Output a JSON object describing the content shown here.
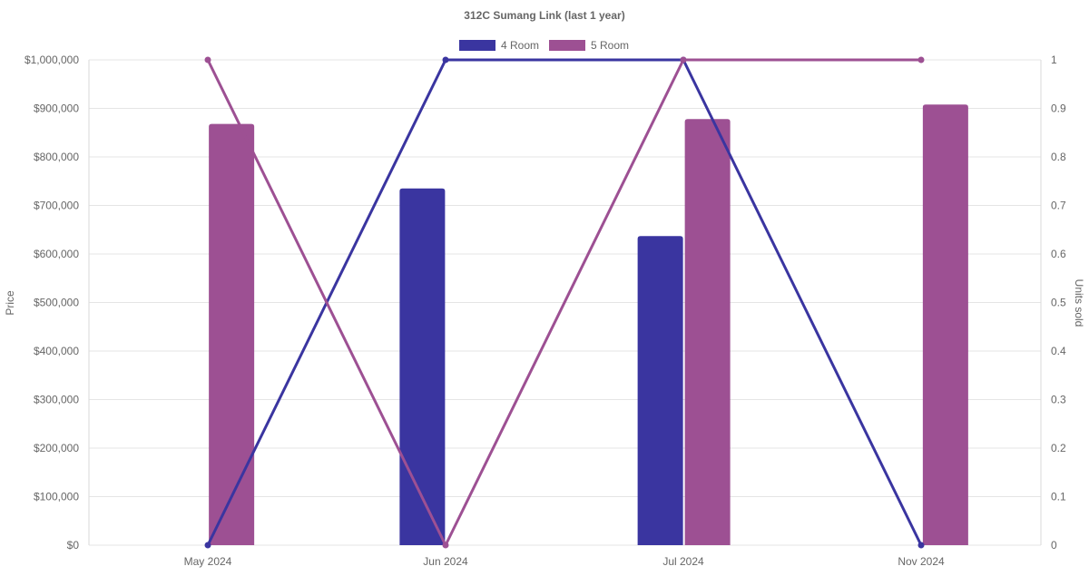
{
  "chart_data": {
    "type": "bar",
    "title": "312C Sumang Link (last 1 year)",
    "categories": [
      "May 2024",
      "Jun 2024",
      "Jul 2024",
      "Nov 2024"
    ],
    "y_left": {
      "label": "Price",
      "range": [
        0,
        1000000
      ],
      "ticks": [
        "$0",
        "$100,000",
        "$200,000",
        "$300,000",
        "$400,000",
        "$500,000",
        "$600,000",
        "$700,000",
        "$800,000",
        "$900,000",
        "$1,000,000"
      ]
    },
    "y_right": {
      "label": "Units sold",
      "range": [
        0,
        1
      ],
      "ticks": [
        "0",
        "0.1",
        "0.2",
        "0.3",
        "0.4",
        "0.5",
        "0.6",
        "0.7",
        "0.8",
        "0.9",
        "1"
      ]
    },
    "legend_position": "top-center",
    "grid": true,
    "series": [
      {
        "name": "4 Room",
        "color": "#3a35a0",
        "price": [
          null,
          735000,
          637000,
          null
        ],
        "units_sold": [
          0,
          1,
          1,
          0
        ]
      },
      {
        "name": "5 Room",
        "color": "#9d5093",
        "price": [
          868000,
          null,
          878000,
          908000
        ],
        "units_sold": [
          1,
          0,
          1,
          1
        ]
      }
    ]
  }
}
